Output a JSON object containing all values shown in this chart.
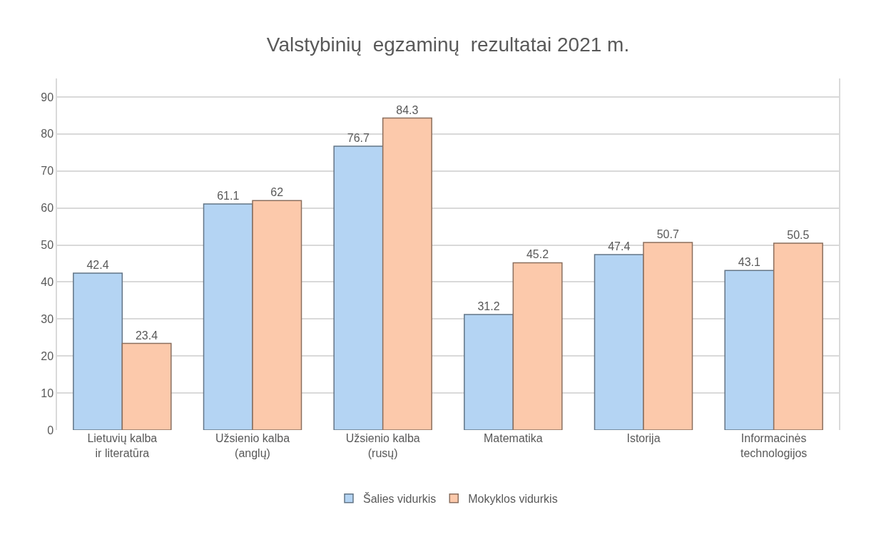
{
  "chart_data": {
    "type": "bar",
    "title": "Valstybinių  egzaminų  rezultatai 2021 m.",
    "categories": [
      "Lietuvių kalba ir literatūra",
      "Užsienio kalba (anglų)",
      "Užsienio kalba (rusų)",
      "Matematika",
      "Istorija",
      "Informacinės technologijos"
    ],
    "series": [
      {
        "name": "Šalies vidurkis",
        "color": "#b4d4f3",
        "values": [
          42.4,
          61.1,
          76.7,
          31.2,
          47.4,
          43.1
        ]
      },
      {
        "name": "Mokyklos vidurkis",
        "color": "#fcc9ab",
        "values": [
          23.4,
          62,
          84.3,
          45.2,
          50.7,
          50.5
        ]
      }
    ],
    "ylim": [
      0,
      95
    ],
    "yticks": [
      0,
      10,
      20,
      30,
      40,
      50,
      60,
      70,
      80,
      90
    ],
    "grid": "y",
    "data_labels": true,
    "legend": "bottom"
  }
}
